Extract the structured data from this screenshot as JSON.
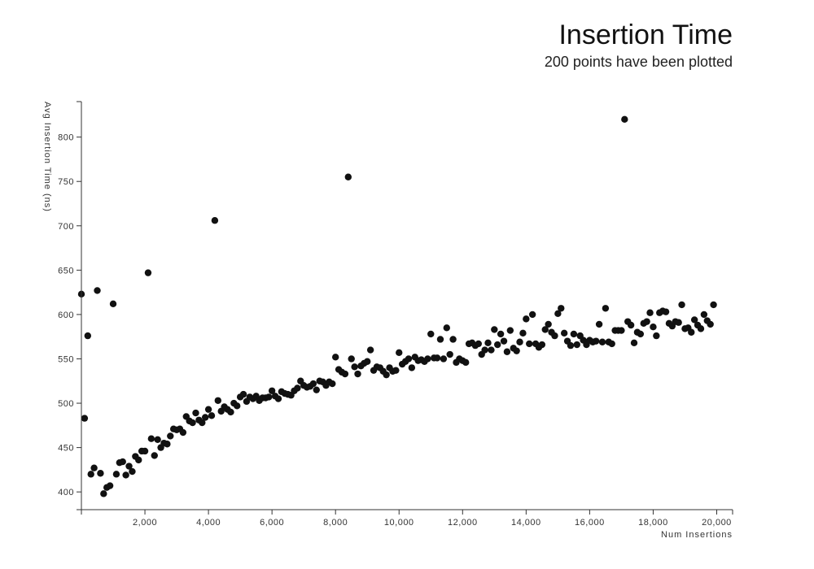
{
  "chart_data": {
    "type": "scatter",
    "title": "Insertion Time",
    "subtitle": "200 points have been plotted",
    "xlabel": "Num Insertions",
    "ylabel": "Avg Insertion Time (ns)",
    "xlim": [
      0,
      20500
    ],
    "ylim": [
      380,
      840
    ],
    "xticks": [
      2000,
      4000,
      6000,
      8000,
      10000,
      12000,
      14000,
      16000,
      18000,
      20000
    ],
    "xtick_labels": [
      "2,000",
      "4,000",
      "6,000",
      "8,000",
      "10,000",
      "12,000",
      "14,000",
      "16,000",
      "18,000",
      "20,000"
    ],
    "yticks": [
      400,
      450,
      500,
      550,
      600,
      650,
      700,
      750,
      800
    ],
    "ytick_labels": [
      "400",
      "450",
      "500",
      "550",
      "600",
      "650",
      "700",
      "750",
      "800"
    ],
    "point_color": "#111111",
    "x": [
      0,
      100,
      200,
      300,
      400,
      500,
      600,
      700,
      800,
      900,
      1000,
      1100,
      1200,
      1300,
      1400,
      1500,
      1600,
      1700,
      1800,
      1900,
      2000,
      2100,
      2200,
      2300,
      2400,
      2500,
      2600,
      2700,
      2800,
      2900,
      3000,
      3100,
      3200,
      3300,
      3400,
      3500,
      3600,
      3700,
      3800,
      3900,
      4000,
      4100,
      4200,
      4300,
      4400,
      4500,
      4600,
      4700,
      4800,
      4900,
      5000,
      5100,
      5200,
      5300,
      5400,
      5500,
      5600,
      5700,
      5800,
      5900,
      6000,
      6100,
      6200,
      6300,
      6400,
      6500,
      6600,
      6700,
      6800,
      6900,
      7000,
      7100,
      7200,
      7300,
      7400,
      7500,
      7600,
      7700,
      7800,
      7900,
      8000,
      8100,
      8200,
      8300,
      8400,
      8500,
      8600,
      8700,
      8800,
      8900,
      9000,
      9100,
      9200,
      9300,
      9400,
      9500,
      9600,
      9700,
      9800,
      9900,
      10000,
      10100,
      10200,
      10300,
      10400,
      10500,
      10600,
      10700,
      10800,
      10900,
      11000,
      11100,
      11200,
      11300,
      11400,
      11500,
      11600,
      11700,
      11800,
      11900,
      12000,
      12100,
      12200,
      12300,
      12400,
      12500,
      12600,
      12700,
      12800,
      12900,
      13000,
      13100,
      13200,
      13300,
      13400,
      13500,
      13600,
      13700,
      13800,
      13900,
      14000,
      14100,
      14200,
      14300,
      14400,
      14500,
      14600,
      14700,
      14800,
      14900,
      15000,
      15100,
      15200,
      15300,
      15400,
      15500,
      15600,
      15700,
      15800,
      15900,
      16000,
      16100,
      16200,
      16300,
      16400,
      16500,
      16600,
      16700,
      16800,
      16900,
      17000,
      17100,
      17200,
      17300,
      17400,
      17500,
      17600,
      17700,
      17800,
      17900,
      18000,
      18100,
      18200,
      18300,
      18400,
      18500,
      18600,
      18700,
      18800,
      18900,
      19000,
      19100,
      19200,
      19300,
      19400,
      19500,
      19600,
      19700,
      19800,
      19900
    ],
    "y": [
      623,
      483,
      576,
      420,
      427,
      627,
      421,
      398,
      405,
      407,
      612,
      420,
      433,
      434,
      419,
      429,
      423,
      440,
      436,
      446,
      446,
      647,
      460,
      441,
      459,
      450,
      455,
      454,
      463,
      471,
      470,
      471,
      467,
      485,
      480,
      478,
      489,
      481,
      478,
      484,
      493,
      486,
      706,
      503,
      491,
      496,
      493,
      490,
      500,
      497,
      507,
      510,
      502,
      507,
      505,
      508,
      503,
      506,
      506,
      507,
      514,
      508,
      505,
      513,
      511,
      510,
      509,
      514,
      517,
      525,
      520,
      518,
      519,
      522,
      515,
      525,
      524,
      520,
      524,
      522,
      552,
      538,
      535,
      533,
      755,
      550,
      541,
      533,
      542,
      545,
      547,
      560,
      537,
      541,
      540,
      536,
      532,
      540,
      536,
      537,
      557,
      544,
      547,
      550,
      540,
      552,
      548,
      549,
      547,
      550,
      578,
      551,
      551,
      572,
      550,
      585,
      555,
      572,
      546,
      550,
      548,
      546,
      567,
      568,
      565,
      567,
      555,
      560,
      568,
      560,
      583,
      566,
      578,
      570,
      558,
      582,
      562,
      559,
      569,
      579,
      595,
      567,
      600,
      567,
      563,
      566,
      583,
      589,
      580,
      576,
      601,
      607,
      579,
      570,
      565,
      578,
      566,
      576,
      571,
      566,
      571,
      569,
      570,
      589,
      569,
      607,
      569,
      567,
      582,
      582,
      582,
      820,
      592,
      588,
      568,
      580,
      578,
      590,
      592,
      602,
      586,
      576,
      602,
      604,
      603,
      590,
      587,
      592,
      591,
      611,
      584,
      585,
      580,
      594,
      588,
      584,
      600,
      593,
      589,
      611
    ]
  }
}
